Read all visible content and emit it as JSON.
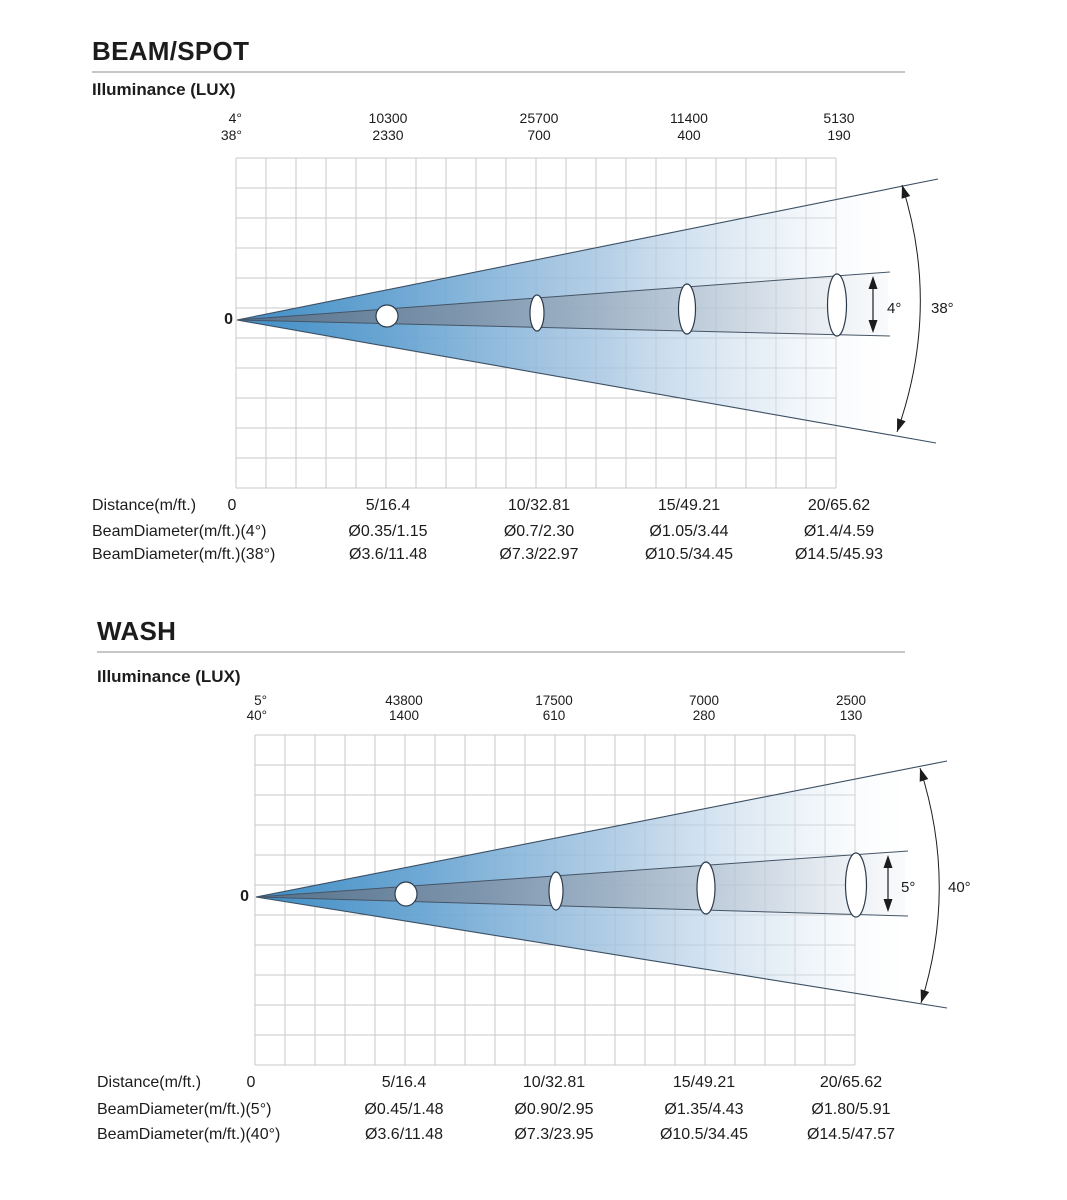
{
  "page": {
    "background": "#ffffff"
  },
  "colors": {
    "cone_blue_start": "#3e8dc5",
    "cone_inner_start": "#587089",
    "grid_line": "#c9c9c9",
    "annotation": "#1c1c1c",
    "rule": "#c6c6c6",
    "text": "#1c1c1c",
    "cross_section_fill": "#ffffff"
  },
  "sections": [
    {
      "title": "BEAM/SPOT",
      "illuminance_label": "Illuminance (LUX)",
      "zero_label": "0",
      "beam_angle_labels": {
        "narrow": "4°",
        "wide": "38°"
      },
      "illuminance_rows": [
        {
          "angle": "4°",
          "values": [
            "10300",
            "25700",
            "11400",
            "5130"
          ]
        },
        {
          "angle": "38°",
          "values": [
            "2330",
            "700",
            "400",
            "190"
          ]
        }
      ],
      "table_rows": [
        {
          "label": "Distance(m/ft.)",
          "values": [
            "0",
            "5/16.4",
            "10/32.81",
            "15/49.21",
            "20/65.62"
          ]
        },
        {
          "label": "BeamDiameter(m/ft.)(4°)",
          "values": [
            "Ø0.35/1.15",
            "Ø0.7/2.30",
            "Ø1.05/3.44",
            "Ø1.4/4.59"
          ]
        },
        {
          "label": "BeamDiameter(m/ft.)(38°)",
          "values": [
            "Ø3.6/11.48",
            "Ø7.3/22.97",
            "Ø10.5/34.45",
            "Ø14.5/45.93"
          ]
        }
      ]
    },
    {
      "title": "WASH",
      "illuminance_label": "Illuminance (LUX)",
      "zero_label": "0",
      "beam_angle_labels": {
        "narrow": "5°",
        "wide": "40°"
      },
      "illuminance_rows": [
        {
          "angle": "5°",
          "values": [
            "43800",
            "17500",
            "7000",
            "2500"
          ]
        },
        {
          "angle": "40°",
          "values": [
            "1400",
            "610",
            "280",
            "130"
          ]
        }
      ],
      "table_rows": [
        {
          "label": "Distance(m/ft.)",
          "values": [
            "0",
            "5/16.4",
            "10/32.81",
            "15/49.21",
            "20/65.62"
          ]
        },
        {
          "label": "BeamDiameter(m/ft.)(5°)",
          "values": [
            "Ø0.45/1.48",
            "Ø0.90/2.95",
            "Ø1.35/4.43",
            "Ø1.80/5.91"
          ]
        },
        {
          "label": "BeamDiameter(m/ft.)(40°)",
          "values": [
            "Ø3.6/11.48",
            "Ø7.3/23.95",
            "Ø10.5/34.45",
            "Ø14.5/47.57"
          ]
        }
      ]
    }
  ],
  "chart_data": [
    {
      "type": "table",
      "title": "BEAM/SPOT",
      "x": [
        "0",
        "5/16.4",
        "10/32.81",
        "15/49.21",
        "20/65.62"
      ],
      "xlabel": "Distance(m/ft.)",
      "series": [
        {
          "name": "Illuminance 4° (LUX)",
          "values": [
            10300,
            25700,
            11400,
            5130
          ]
        },
        {
          "name": "Illuminance 38° (LUX)",
          "values": [
            2330,
            700,
            400,
            190
          ]
        },
        {
          "name": "BeamDiameter(m/ft.)(4°)",
          "values": [
            "Ø0.35/1.15",
            "Ø0.7/2.30",
            "Ø1.05/3.44",
            "Ø1.4/4.59"
          ]
        },
        {
          "name": "BeamDiameter(m/ft.)(38°)",
          "values": [
            "Ø3.6/11.48",
            "Ø7.3/22.97",
            "Ø10.5/34.45",
            "Ø14.5/45.93"
          ]
        }
      ]
    },
    {
      "type": "table",
      "title": "WASH",
      "x": [
        "0",
        "5/16.4",
        "10/32.81",
        "15/49.21",
        "20/65.62"
      ],
      "xlabel": "Distance(m/ft.)",
      "series": [
        {
          "name": "Illuminance 5° (LUX)",
          "values": [
            43800,
            17500,
            7000,
            2500
          ]
        },
        {
          "name": "Illuminance 40° (LUX)",
          "values": [
            1400,
            610,
            280,
            130
          ]
        },
        {
          "name": "BeamDiameter(m/ft.)(5°)",
          "values": [
            "Ø0.45/1.48",
            "Ø0.90/2.95",
            "Ø1.35/4.43",
            "Ø1.80/5.91"
          ]
        },
        {
          "name": "BeamDiameter(m/ft.)(40°)",
          "values": [
            "Ø3.6/11.48",
            "Ø7.3/23.95",
            "Ø10.5/34.45",
            "Ø14.5/47.57"
          ]
        }
      ]
    }
  ]
}
